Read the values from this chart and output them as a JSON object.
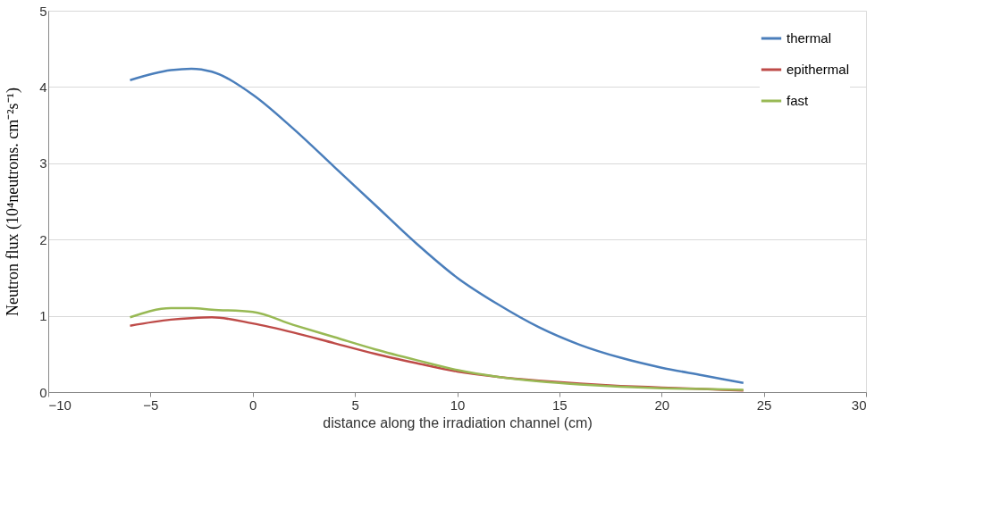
{
  "chart_data": {
    "type": "line",
    "xlabel": "distance along the irradiation channel (cm)",
    "ylabel": "Neutron flux (10⁴neutrons. cm⁻²s⁻¹)",
    "x": [
      -6,
      -4,
      -3,
      -2,
      0,
      2,
      4,
      6,
      8,
      10,
      12,
      14,
      16,
      18,
      20,
      22,
      24
    ],
    "series": [
      {
        "name": "thermal",
        "color": "#4a7ebb",
        "values": [
          4.09,
          4.22,
          4.24,
          4.2,
          3.9,
          3.45,
          2.95,
          2.45,
          1.95,
          1.5,
          1.15,
          0.85,
          0.62,
          0.45,
          0.32,
          0.22,
          0.12
        ]
      },
      {
        "name": "epithermal",
        "color": "#be4b48",
        "values": [
          0.87,
          0.95,
          0.97,
          0.98,
          0.9,
          0.78,
          0.64,
          0.5,
          0.38,
          0.27,
          0.2,
          0.15,
          0.11,
          0.08,
          0.06,
          0.04,
          0.02
        ]
      },
      {
        "name": "fast",
        "color": "#98b954",
        "values": [
          0.98,
          1.1,
          1.1,
          1.08,
          1.05,
          0.88,
          0.72,
          0.56,
          0.42,
          0.29,
          0.2,
          0.14,
          0.1,
          0.07,
          0.05,
          0.04,
          0.03
        ]
      }
    ],
    "xlim": [
      -10,
      30
    ],
    "xticks": [
      -10,
      -5,
      0,
      5,
      10,
      15,
      20,
      25,
      30
    ],
    "ylim": [
      0,
      5
    ],
    "yticks": [
      0,
      1,
      2,
      3,
      4,
      5
    ],
    "grid": "y",
    "legend": "top right",
    "marker": "none",
    "line_style": "solid"
  }
}
